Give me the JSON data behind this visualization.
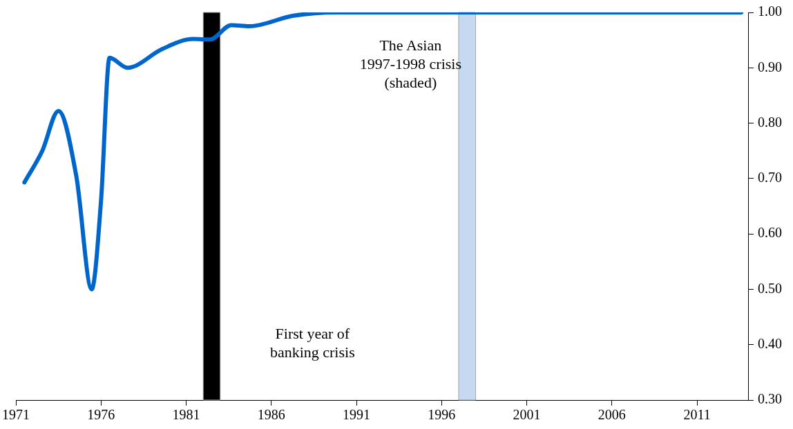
{
  "chart_data": {
    "type": "line",
    "x": [
      1971.5,
      1972.55,
      1973.5,
      1974.55,
      1975.45,
      1976.0,
      1976.5,
      1977.55,
      1979.6,
      1981.4,
      1982.4,
      1983.65,
      1984.7,
      1987.3,
      1989.8,
      1995,
      2000,
      2005,
      2010,
      2013.6
    ],
    "series": [
      {
        "color": "#0066cc",
        "values": [
          0.693,
          0.75,
          0.822,
          0.704,
          0.5,
          0.66,
          0.918,
          0.9,
          0.934,
          0.952,
          0.951,
          0.977,
          0.975,
          0.994,
          1.0,
          1.0,
          1.0,
          1.0,
          1.0,
          1.0
        ]
      }
    ],
    "xlim": [
      1971,
      2014
    ],
    "xticks": [
      1971,
      1976,
      1981,
      1986,
      1991,
      1996,
      2001,
      2006,
      2011
    ],
    "ylim": [
      0.3,
      1.0
    ],
    "yticks": [
      {
        "value": 0.3,
        "label": "0.30"
      },
      {
        "value": 0.4,
        "label": "0.40"
      },
      {
        "value": 0.5,
        "label": "0.50"
      },
      {
        "value": 0.6,
        "label": "0.60"
      },
      {
        "value": 0.7,
        "label": "0.70"
      },
      {
        "value": 0.8,
        "label": "0.80"
      },
      {
        "value": 0.9,
        "label": "0.90"
      },
      {
        "value": 1.0,
        "label": "1.00"
      }
    ],
    "bands": [
      {
        "axis": "x",
        "from": 1982,
        "to": 1983,
        "color": "#000000"
      },
      {
        "axis": "x",
        "from": 1997,
        "to": 1998,
        "color": "#c6d9f1"
      }
    ],
    "annotations": [
      "First year of\nbanking crisis",
      "The Asian\n1997-1998 crisis\n(shaded)"
    ],
    "grid": false,
    "legend": false,
    "marker": "none",
    "line_style": "solid"
  }
}
